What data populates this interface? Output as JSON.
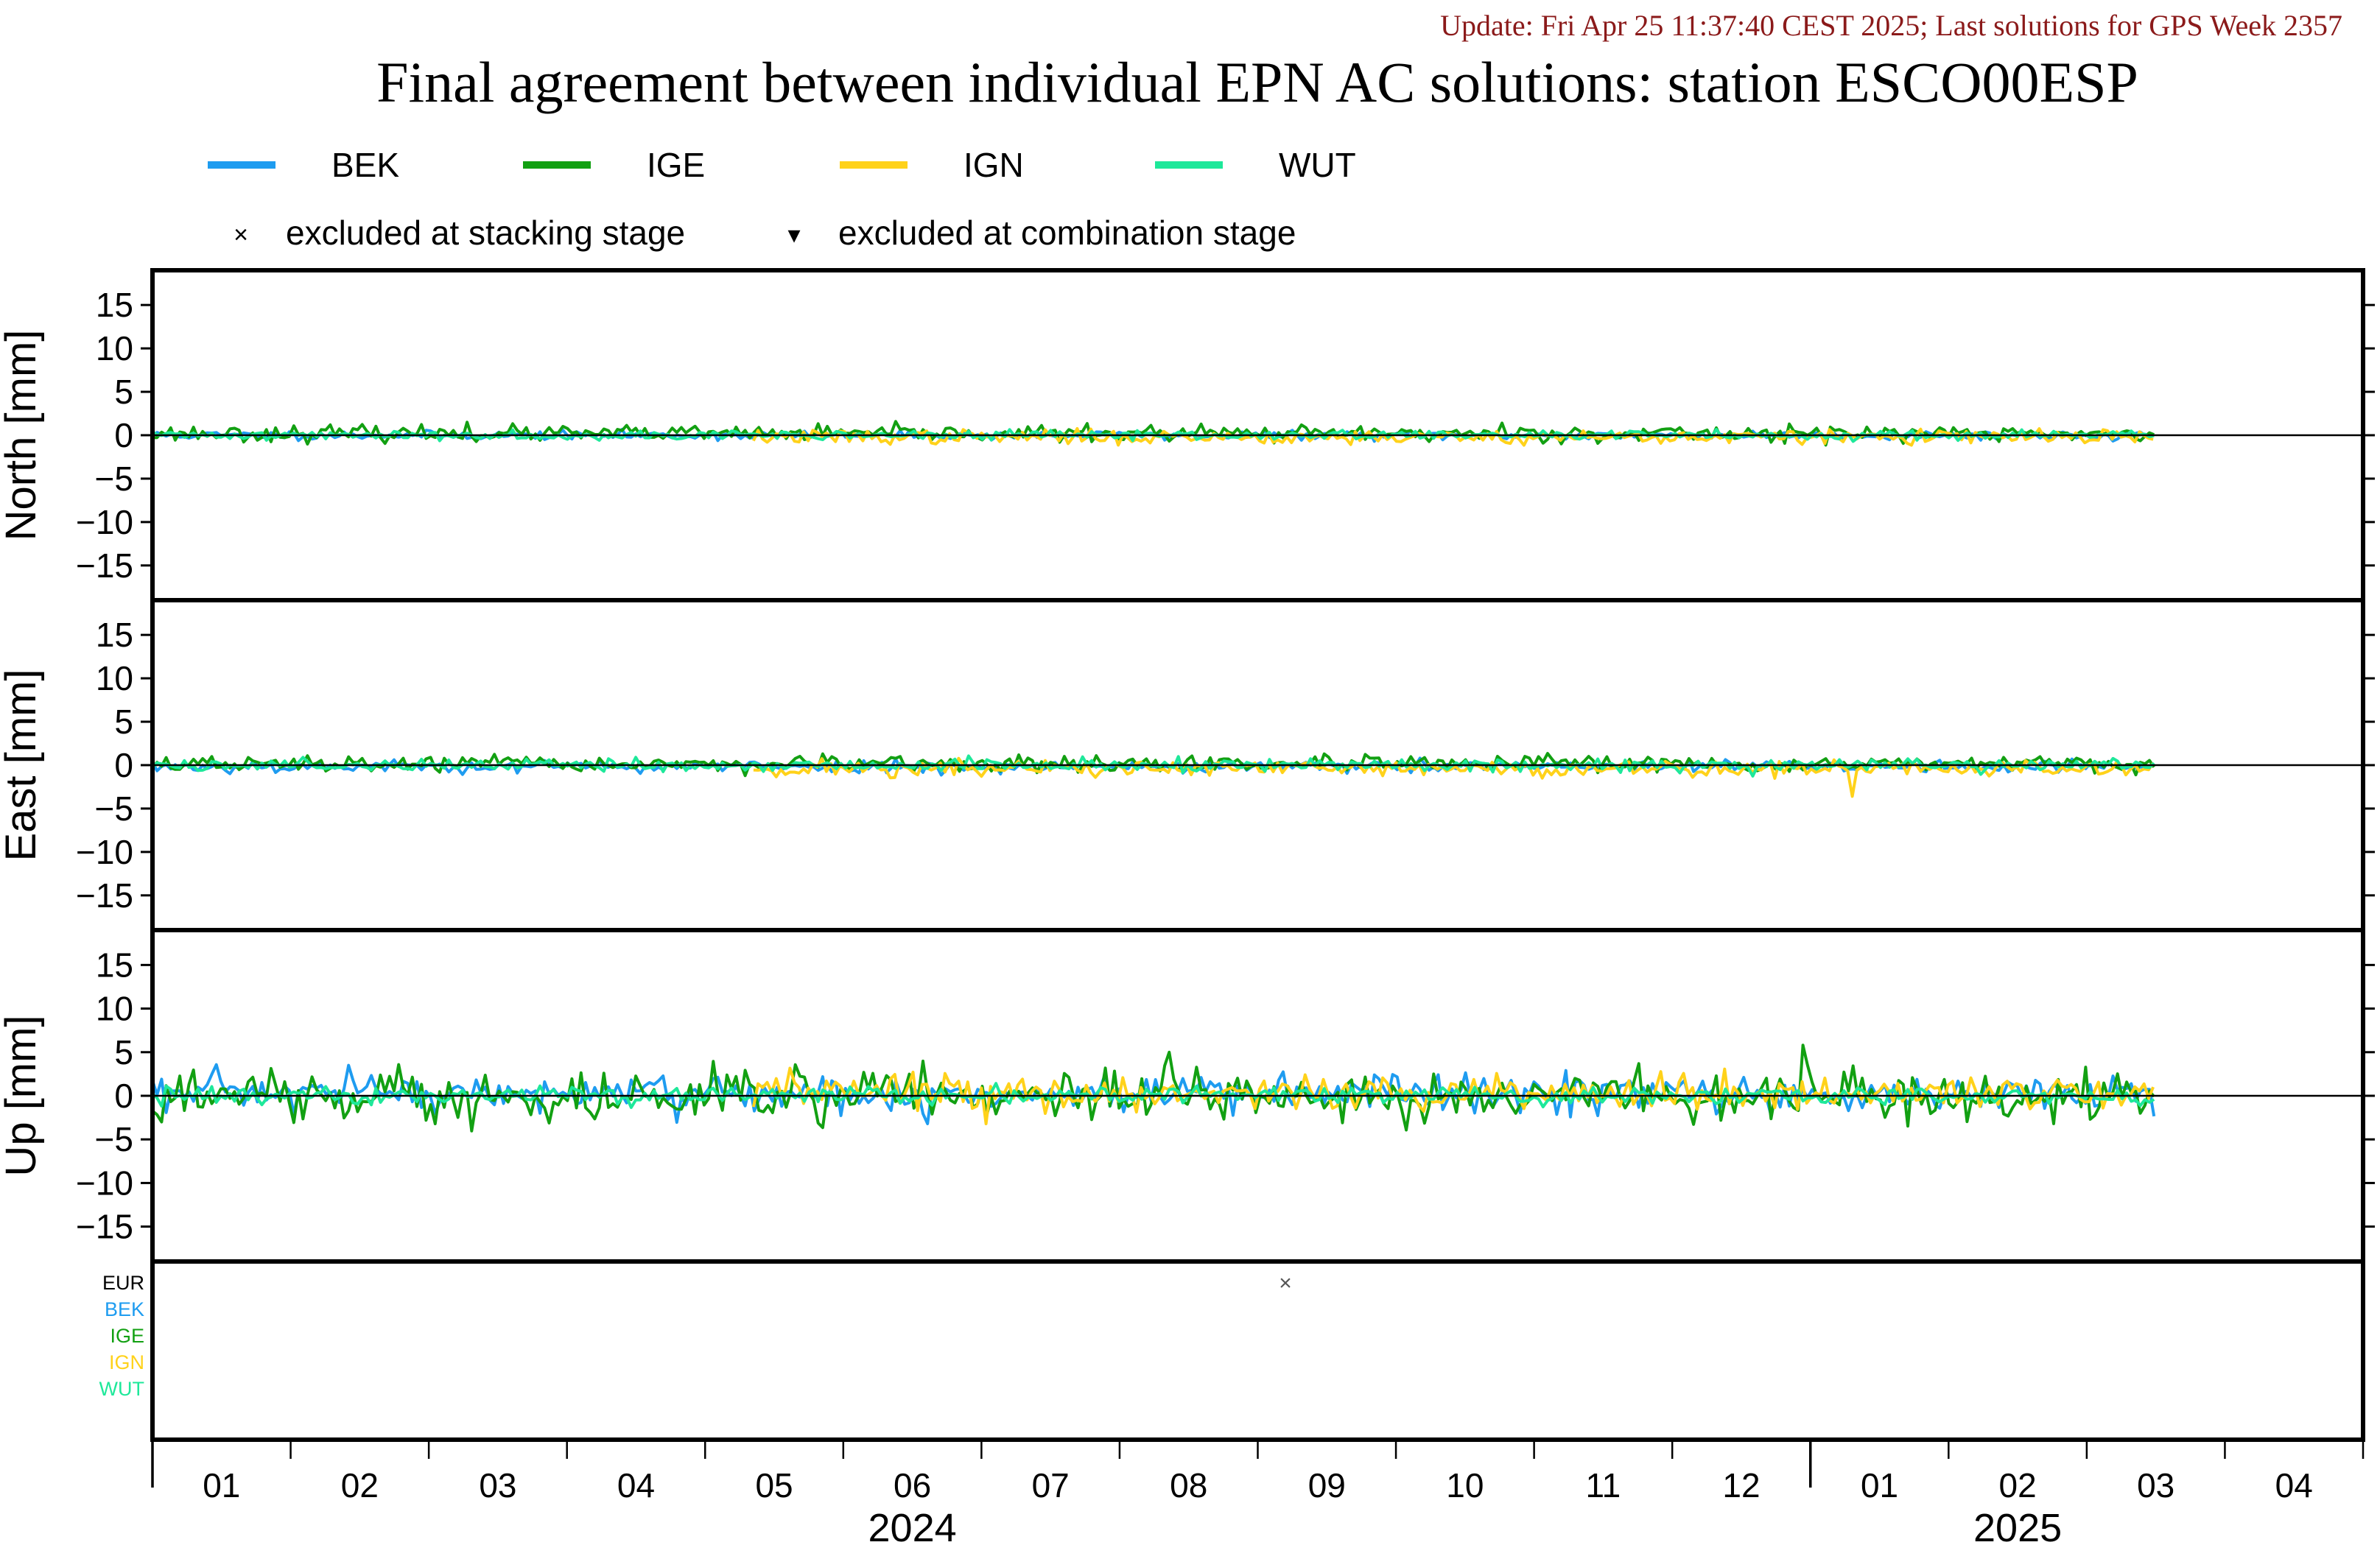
{
  "header": {
    "update_text": "Update: Fri Apr 25 11:37:40 CEST 2025; Last solutions for GPS Week 2357",
    "update_color": "#8b1a1a"
  },
  "chart_data": {
    "type": "line",
    "title": "Final agreement between individual EPN AC solutions: station ESCO00ESP",
    "legend": {
      "placement": "top",
      "entries": [
        {
          "name": "BEK",
          "color": "#1e9cf0"
        },
        {
          "name": "IGE",
          "color": "#12a012"
        },
        {
          "name": "IGN",
          "color": "#ffd21a"
        },
        {
          "name": "WUT",
          "color": "#1ee89a"
        }
      ],
      "markers": [
        {
          "symbol": "×",
          "label": "excluded at stacking stage"
        },
        {
          "symbol": "▾",
          "label": "excluded at combination stage"
        }
      ]
    },
    "xaxis": {
      "month_labels": [
        "01",
        "02",
        "03",
        "04",
        "05",
        "06",
        "07",
        "08",
        "09",
        "10",
        "11",
        "12",
        "01",
        "02",
        "03",
        "04"
      ],
      "year_labels": [
        {
          "label": "2024",
          "center_month": 5.5
        },
        {
          "label": "2025",
          "center_month": 13.5
        }
      ],
      "xlim_months": [
        0,
        16
      ]
    },
    "panels": [
      {
        "name": "north",
        "ylabel": "North [mm]",
        "ylim": [
          -19,
          19
        ],
        "yticks": [
          15,
          10,
          5,
          0,
          -5,
          -10,
          -15
        ],
        "series": [
          {
            "name": "BEK",
            "start": 0.0,
            "end": 14.5,
            "amplitude": 0.25,
            "seed": 11
          },
          {
            "name": "IGE",
            "start": 0.0,
            "end": 14.5,
            "amplitude": 0.45,
            "offset": 0.2,
            "seed": 23
          },
          {
            "name": "IGN",
            "start": 4.35,
            "end": 14.5,
            "amplitude": 0.4,
            "offset": -0.2,
            "seed": 37
          },
          {
            "name": "WUT",
            "start": 0.0,
            "end": 14.5,
            "amplitude": 0.25,
            "seed": 41
          }
        ],
        "features": [
          {
            "series": "IGE",
            "month": 2.27,
            "value": 1.5
          },
          {
            "series": "IGE",
            "month": 9.77,
            "value": 1.4
          },
          {
            "series": "IGE",
            "month": 11.85,
            "value": 1.3
          },
          {
            "series": "IGE",
            "month": 8.12,
            "value": -0.9
          }
        ]
      },
      {
        "name": "east",
        "ylabel": "East [mm]",
        "ylim": [
          -19,
          19
        ],
        "yticks": [
          15,
          10,
          5,
          0,
          -5,
          -10,
          -15
        ],
        "series": [
          {
            "name": "BEK",
            "start": 0.0,
            "end": 14.5,
            "amplitude": 0.35,
            "offset": -0.15,
            "seed": 53
          },
          {
            "name": "IGE",
            "start": 0.0,
            "end": 14.5,
            "amplitude": 0.45,
            "offset": 0.1,
            "seed": 67
          },
          {
            "name": "IGN",
            "start": 4.35,
            "end": 14.5,
            "amplitude": 0.5,
            "offset": -0.4,
            "seed": 71
          },
          {
            "name": "WUT",
            "start": 0.0,
            "end": 14.5,
            "amplitude": 0.35,
            "seed": 89
          }
        ],
        "features": [
          {
            "series": "IGN",
            "month": 12.3,
            "value": -3.6
          },
          {
            "series": "WUT",
            "month": 1.1,
            "value": 0.9
          },
          {
            "series": "WUT",
            "month": 3.5,
            "value": 0.9
          },
          {
            "series": "IGE",
            "month": 2.0,
            "value": 0.9
          },
          {
            "series": "IGE",
            "month": 8.5,
            "value": 0.9
          }
        ]
      },
      {
        "name": "up",
        "ylabel": "Up [mm]",
        "ylim": [
          -19,
          19
        ],
        "yticks": [
          15,
          10,
          5,
          0,
          -5,
          -10,
          -15
        ],
        "series": [
          {
            "name": "BEK",
            "start": 0.0,
            "end": 14.5,
            "amplitude": 1.1,
            "offset": 0.2,
            "seed": 97
          },
          {
            "name": "IGE",
            "start": 0.0,
            "end": 14.5,
            "amplitude": 1.5,
            "seed": 103
          },
          {
            "name": "IGN",
            "start": 4.35,
            "end": 14.5,
            "amplitude": 1.0,
            "offset": 0.3,
            "seed": 113
          },
          {
            "name": "WUT",
            "start": 0.0,
            "end": 14.5,
            "amplitude": 0.5,
            "seed": 127
          }
        ],
        "features": [
          {
            "series": "IGE",
            "month": 7.35,
            "value": 5.0
          },
          {
            "series": "IGE",
            "month": 11.95,
            "value": 5.8
          },
          {
            "series": "BEK",
            "month": 1.42,
            "value": 3.5
          },
          {
            "series": "BEK",
            "month": 5.6,
            "value": -3.2
          },
          {
            "series": "IGE",
            "month": 0.05,
            "value": -3.0
          },
          {
            "series": "IGE",
            "month": 13.75,
            "value": -3.2
          }
        ]
      }
    ],
    "exclusion_panel": {
      "rows": [
        {
          "label": "EUR",
          "color": "#000000"
        },
        {
          "label": "BEK",
          "color": "#1e9cf0"
        },
        {
          "label": "IGE",
          "color": "#12a012"
        },
        {
          "label": "IGN",
          "color": "#ffd21a"
        },
        {
          "label": "WUT",
          "color": "#1ee89a"
        }
      ],
      "marks": [
        {
          "row": "EUR",
          "month": 8.2,
          "symbol": "×"
        }
      ]
    }
  }
}
